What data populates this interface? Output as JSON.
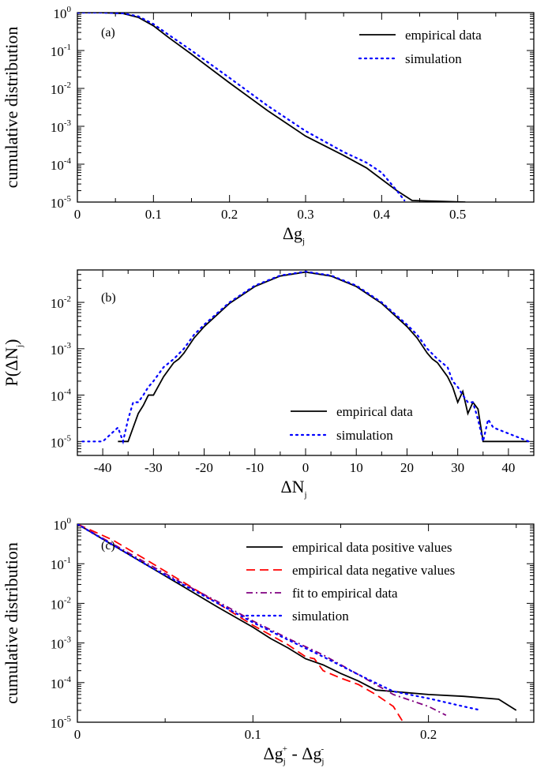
{
  "chart_data": [
    {
      "panel_label": "(a)",
      "type": "line",
      "xlabel": {
        "main": "Δg",
        "sub": "j"
      },
      "ylabel": "cumulative distribution",
      "xlim": [
        0,
        0.6
      ],
      "ylim": [
        1e-05,
        1
      ],
      "yscale": "log",
      "xticks": [
        0,
        0.1,
        0.2,
        0.3,
        0.4,
        0.5
      ],
      "xtick_labels": [
        "0",
        "0.1",
        "0.2",
        "0.3",
        "0.4",
        "0.5"
      ],
      "yticks": [
        1e-05,
        0.0001,
        0.001,
        0.01,
        0.1,
        1
      ],
      "ytick_labels": [
        {
          "base": "10",
          "exp": "-5"
        },
        {
          "base": "10",
          "exp": "-4"
        },
        {
          "base": "10",
          "exp": "-3"
        },
        {
          "base": "10",
          "exp": "-2"
        },
        {
          "base": "10",
          "exp": "-1"
        },
        {
          "base": "10",
          "exp": "0"
        }
      ],
      "legend_position": "top-right",
      "series": [
        {
          "name": "empirical data",
          "color": "#000000",
          "style": "solid",
          "x": [
            0,
            0.03,
            0.06,
            0.08,
            0.1,
            0.12,
            0.15,
            0.2,
            0.25,
            0.3,
            0.35,
            0.38,
            0.4,
            0.42,
            0.44,
            0.51
          ],
          "y": [
            1,
            1,
            0.95,
            0.75,
            0.45,
            0.22,
            0.08,
            0.014,
            0.0026,
            0.00055,
            0.00017,
            8e-05,
            4e-05,
            2e-05,
            1.1e-05,
            5.5e-06
          ]
        },
        {
          "name": "simulation",
          "color": "#0000ff",
          "style": "dotted",
          "x": [
            0,
            0.03,
            0.06,
            0.08,
            0.1,
            0.12,
            0.15,
            0.2,
            0.25,
            0.3,
            0.35,
            0.38,
            0.4,
            0.42,
            0.43
          ],
          "y": [
            1,
            1,
            0.96,
            0.8,
            0.5,
            0.26,
            0.1,
            0.019,
            0.0035,
            0.00075,
            0.00021,
            0.00011,
            6e-05,
            2e-05,
            1.1e-05
          ]
        }
      ]
    },
    {
      "panel_label": "(b)",
      "type": "line",
      "xlabel": {
        "main": "ΔN",
        "sub": "j"
      },
      "ylabel": {
        "main": "P(ΔN",
        "sub": "j",
        "tail": ")"
      },
      "xlim": [
        -45,
        45
      ],
      "ylim": [
        5e-06,
        0.05
      ],
      "yscale": "log",
      "xticks": [
        -40,
        -30,
        -20,
        -10,
        0,
        10,
        20,
        30,
        40
      ],
      "xtick_labels": [
        "-40",
        "-30",
        "-20",
        "-10",
        "0",
        "10",
        "20",
        "30",
        "40"
      ],
      "yticks": [
        1e-05,
        0.0001,
        0.001,
        0.01
      ],
      "ytick_labels": [
        {
          "base": "10",
          "exp": "-5"
        },
        {
          "base": "10",
          "exp": "-4"
        },
        {
          "base": "10",
          "exp": "-3"
        },
        {
          "base": "10",
          "exp": "-2"
        }
      ],
      "legend_position": "bottom-right",
      "series": [
        {
          "name": "empirical data",
          "color": "#000000",
          "style": "solid",
          "x": [
            -37,
            -36,
            -35,
            -34,
            -33,
            -32,
            -31,
            -30,
            -28,
            -26,
            -25,
            -24,
            -22,
            -20,
            -15,
            -10,
            -5,
            0,
            5,
            10,
            15,
            20,
            22,
            24,
            25,
            26,
            28,
            29,
            30,
            31,
            32,
            33,
            34,
            35,
            36,
            37,
            38,
            44
          ],
          "y": [
            1e-05,
            1e-05,
            1e-05,
            2e-05,
            4e-05,
            6e-05,
            0.0001,
            0.0001,
            0.00025,
            0.0005,
            0.0006,
            0.0008,
            0.0017,
            0.003,
            0.0095,
            0.022,
            0.037,
            0.045,
            0.037,
            0.022,
            0.0095,
            0.003,
            0.0017,
            0.0008,
            0.0006,
            0.0005,
            0.00025,
            0.00015,
            7e-05,
            0.00012,
            4e-05,
            7e-05,
            5e-05,
            1e-05,
            1e-05,
            1e-05,
            1e-05,
            1e-05
          ]
        },
        {
          "name": "simulation",
          "color": "#0000ff",
          "style": "dotted",
          "x": [
            -44,
            -40,
            -37,
            -36,
            -35,
            -34,
            -33,
            -32,
            -31,
            -30,
            -28,
            -26,
            -24,
            -22,
            -20,
            -15,
            -10,
            -5,
            0,
            5,
            10,
            15,
            20,
            22,
            24,
            26,
            28,
            29,
            30,
            31,
            32,
            33,
            34,
            35,
            36,
            37,
            44
          ],
          "y": [
            1e-05,
            1e-05,
            2e-05,
            1e-05,
            3e-05,
            7e-05,
            7e-05,
            0.0001,
            0.00015,
            0.0002,
            0.0004,
            0.0006,
            0.001,
            0.002,
            0.0033,
            0.01,
            0.023,
            0.038,
            0.046,
            0.038,
            0.023,
            0.01,
            0.0033,
            0.002,
            0.001,
            0.0006,
            0.0004,
            0.0002,
            0.00015,
            0.0001,
            7e-05,
            7e-05,
            3e-05,
            1e-05,
            3e-05,
            2e-05,
            1e-05
          ]
        }
      ]
    },
    {
      "panel_label": "(c)",
      "type": "line",
      "xlabel": {
        "main": "Δg",
        "sub": "j",
        "sup": "+",
        "mid": " - Δg",
        "sub2": "j",
        "sup2": "-"
      },
      "ylabel": "cumulative distribution",
      "xlim": [
        0,
        0.26
      ],
      "ylim": [
        1e-05,
        1
      ],
      "yscale": "log",
      "xticks": [
        0,
        0.1,
        0.2
      ],
      "xtick_labels": [
        "0",
        "0.1",
        "0.2"
      ],
      "yticks": [
        1e-05,
        0.0001,
        0.001,
        0.01,
        0.1,
        1
      ],
      "ytick_labels": [
        {
          "base": "10",
          "exp": "-5"
        },
        {
          "base": "10",
          "exp": "-4"
        },
        {
          "base": "10",
          "exp": "-3"
        },
        {
          "base": "10",
          "exp": "-2"
        },
        {
          "base": "10",
          "exp": "-1"
        },
        {
          "base": "10",
          "exp": "0"
        }
      ],
      "legend_position": "top-right",
      "series": [
        {
          "name": "empirical data positive values",
          "color": "#000000",
          "style": "solid",
          "x": [
            0,
            0.02,
            0.04,
            0.06,
            0.08,
            0.1,
            0.11,
            0.12,
            0.13,
            0.14,
            0.15,
            0.16,
            0.17,
            0.2,
            0.22,
            0.24,
            0.25
          ],
          "y": [
            1,
            0.3,
            0.09,
            0.027,
            0.008,
            0.0025,
            0.0013,
            0.00075,
            0.0004,
            0.00028,
            0.00017,
            0.00011,
            6.5e-05,
            5e-05,
            4.5e-05,
            3.8e-05,
            2e-05
          ]
        },
        {
          "name": "empirical data negative values",
          "color": "#ff0000",
          "style": "dashed",
          "x": [
            0,
            0.02,
            0.04,
            0.06,
            0.08,
            0.1,
            0.12,
            0.13,
            0.135,
            0.14,
            0.15,
            0.16,
            0.17,
            0.18,
            0.185
          ],
          "y": [
            1,
            0.4,
            0.12,
            0.035,
            0.01,
            0.0028,
            0.0009,
            0.00045,
            0.0004,
            0.0002,
            0.00013,
            9e-05,
            5e-05,
            2.5e-05,
            1.1e-05
          ]
        },
        {
          "name": "fit to empirical data",
          "color": "#800080",
          "style": "dashdot",
          "x": [
            0,
            0.02,
            0.04,
            0.06,
            0.08,
            0.1,
            0.12,
            0.14,
            0.16,
            0.18,
            0.2,
            0.21
          ],
          "y": [
            1,
            0.32,
            0.1,
            0.032,
            0.011,
            0.0036,
            0.0013,
            0.0005,
            0.00016,
            5e-05,
            2.5e-05,
            1.5e-05
          ]
        },
        {
          "name": "simulation",
          "color": "#0000ff",
          "style": "dotted",
          "x": [
            0,
            0.02,
            0.04,
            0.06,
            0.08,
            0.1,
            0.12,
            0.14,
            0.16,
            0.18,
            0.2,
            0.22,
            0.23
          ],
          "y": [
            1,
            0.3,
            0.09,
            0.03,
            0.01,
            0.0033,
            0.0012,
            0.00045,
            0.00016,
            6e-05,
            4e-05,
            2.5e-05,
            2e-05
          ]
        }
      ]
    }
  ]
}
